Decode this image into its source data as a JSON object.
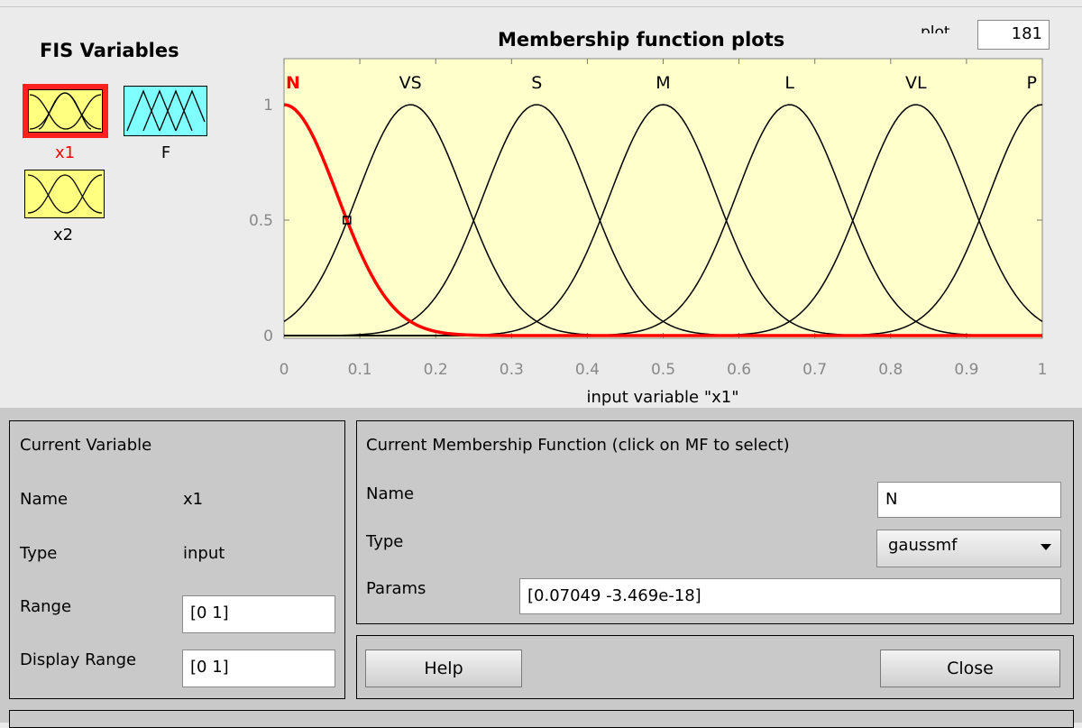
{
  "fis": {
    "title": "FIS Variables",
    "variables": [
      {
        "label": "x1",
        "kind": "input",
        "selected": true,
        "color": "#ffff80"
      },
      {
        "label": "F",
        "kind": "output",
        "selected": false,
        "color": "#80ffff"
      },
      {
        "label": "x2",
        "kind": "input",
        "selected": false,
        "color": "#ffff80"
      }
    ]
  },
  "plot": {
    "title": "Membership function plots",
    "points_label": "plot points:",
    "points_value": "181"
  },
  "chart_data": {
    "type": "line",
    "title": "Membership function plots",
    "xlabel": "input variable \"x1\"",
    "ylabel": "",
    "xlim": [
      0,
      1
    ],
    "ylim": [
      0,
      1.1
    ],
    "x_ticks": [
      "0",
      "0.1",
      "0.2",
      "0.3",
      "0.4",
      "0.5",
      "0.6",
      "0.7",
      "0.8",
      "0.9",
      "1"
    ],
    "y_ticks": [
      "0",
      "0.5",
      "1"
    ],
    "background": "#ffffcc",
    "selected_color": "#ff0000",
    "series": [
      {
        "name": "N",
        "mf": "gaussmf",
        "sigma": 0.07049,
        "center": 0.0,
        "selected": true
      },
      {
        "name": "VS",
        "mf": "gaussmf",
        "sigma": 0.07049,
        "center": 0.1667,
        "selected": false
      },
      {
        "name": "S",
        "mf": "gaussmf",
        "sigma": 0.07049,
        "center": 0.3333,
        "selected": false
      },
      {
        "name": "M",
        "mf": "gaussmf",
        "sigma": 0.07049,
        "center": 0.5,
        "selected": false
      },
      {
        "name": "L",
        "mf": "gaussmf",
        "sigma": 0.07049,
        "center": 0.6667,
        "selected": false
      },
      {
        "name": "VL",
        "mf": "gaussmf",
        "sigma": 0.07049,
        "center": 0.8333,
        "selected": false
      },
      {
        "name": "P",
        "mf": "gaussmf",
        "sigma": 0.07049,
        "center": 1.0,
        "selected": false
      }
    ],
    "marker": {
      "x": 0.083,
      "y": 0.5
    }
  },
  "current_variable": {
    "title": "Current Variable",
    "name_label": "Name",
    "name_value": "x1",
    "type_label": "Type",
    "type_value": "input",
    "range_label": "Range",
    "range_value": "[0 1]",
    "display_range_label": "Display Range",
    "display_range_value": "[0 1]"
  },
  "current_mf": {
    "title": "Current Membership Function (click on MF to select)",
    "name_label": "Name",
    "name_value": "N",
    "type_label": "Type",
    "type_value": "gaussmf",
    "params_label": "Params",
    "params_value": "[0.07049 -3.469e-18]"
  },
  "buttons": {
    "help": "Help",
    "close": "Close"
  }
}
